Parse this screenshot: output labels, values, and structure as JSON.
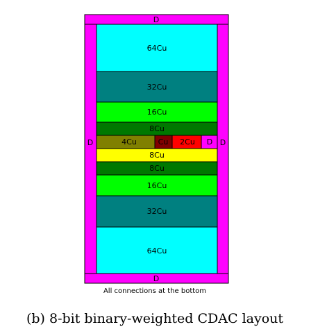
{
  "diagram": {
    "dummy_label": "D",
    "colors": {
      "dummy": "#ff00ff",
      "c64": "#00ffff",
      "c32": "#008080",
      "c16": "#00ff00",
      "c8": "#007800",
      "c4": "#808000",
      "c1": "#800000",
      "c2": "#ff0000",
      "c8_yellow": "#ffff00"
    },
    "blocks": [
      {
        "label": "64Cu",
        "color": "#00ffff"
      },
      {
        "label": "32Cu",
        "color": "#008080"
      },
      {
        "label": "16Cu",
        "color": "#00ff00"
      },
      {
        "label": "8Cu",
        "color": "#007800"
      },
      {
        "label": "4Cu",
        "color": "#808000"
      },
      {
        "label": "Cu",
        "color": "#800000"
      },
      {
        "label": "2Cu",
        "color": "#ff0000"
      },
      {
        "label": "D",
        "color": "#ff00ff"
      },
      {
        "label": "8Cu",
        "color": "#ffff00"
      },
      {
        "label": "8Cu",
        "color": "#007800"
      },
      {
        "label": "16Cu",
        "color": "#00ff00"
      },
      {
        "label": "32Cu",
        "color": "#008080"
      },
      {
        "label": "64Cu",
        "color": "#00ffff"
      }
    ]
  },
  "note": "All connections at the bottom",
  "caption": "(b) 8-bit binary-weighted CDAC layout"
}
